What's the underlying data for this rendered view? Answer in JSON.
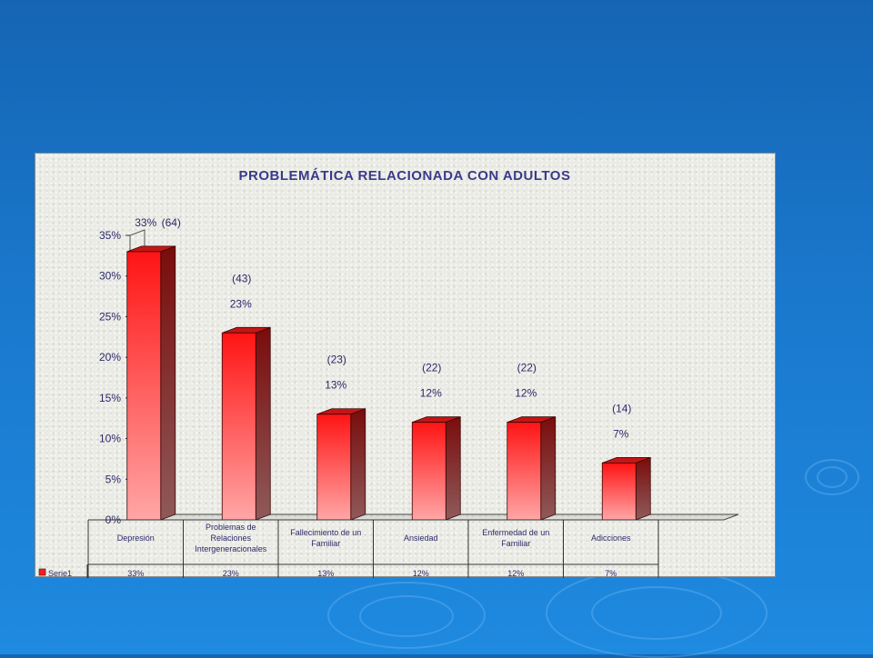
{
  "slide": {
    "background_color": "#1a78cc"
  },
  "chart_data": {
    "type": "bar",
    "title": "PROBLEMÁTICA RELACIONADA CON ADULTOS",
    "categories": [
      "Depresión",
      "Problemas de Relaciones Intergeneracionales",
      "Fallecimiento de un Familiar",
      "Ansiedad",
      "Enfermedad de un Familiar",
      "Adicciones"
    ],
    "category_lines": [
      [
        "Depresión"
      ],
      [
        "Problemas de",
        "Relaciones",
        "Intergeneracionales"
      ],
      [
        "Fallecimiento de un",
        "Familiar"
      ],
      [
        "Ansiedad"
      ],
      [
        "Enfermedad de un",
        "Familiar"
      ],
      [
        "Adicciones"
      ]
    ],
    "series": [
      {
        "name": "Serie1",
        "values": [
          33,
          23,
          13,
          12,
          12,
          7
        ],
        "value_labels": [
          "33%",
          "23%",
          "13%",
          "12%",
          "12%",
          "7%"
        ],
        "counts": [
          "(64)",
          "(43)",
          "(23)",
          "(22)",
          "(22)",
          "(14)"
        ],
        "color": "#e8161a"
      }
    ],
    "y_ticks": [
      "0%",
      "5%",
      "10%",
      "15%",
      "20%",
      "25%",
      "30%",
      "35%"
    ],
    "ylim": [
      0,
      35
    ],
    "legend_placement": "data-table",
    "colors": {
      "bar_front": "#ff1a1a",
      "bar_side": "#8a1010",
      "bar_top": "#c41616"
    }
  }
}
